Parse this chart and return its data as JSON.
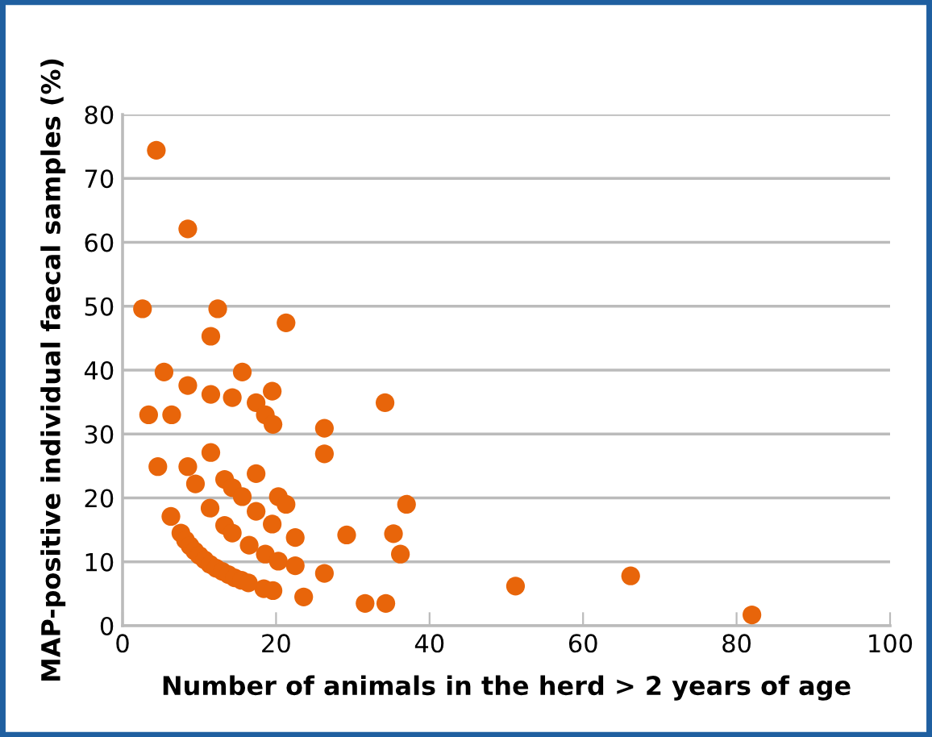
{
  "chart_data": {
    "type": "scatter",
    "xlabel": "Number of animals in the herd > 2 years of age",
    "ylabel": "MAP-positive individual faecal samples (%)",
    "xlim": [
      0,
      100
    ],
    "xticks": [
      0,
      20,
      40,
      60,
      80,
      100
    ],
    "ylim": [
      0,
      80
    ],
    "yticks": [
      0,
      10,
      20,
      30,
      40,
      50,
      60,
      70,
      80
    ],
    "grid": "y",
    "marker": "circle",
    "legend": false,
    "series": [
      {
        "color": "#e8650a",
        "x": [
          4.4,
          8.5,
          2.6,
          12.4,
          11.5,
          21.3,
          5.4,
          15.6,
          8.5,
          11.5,
          14.3,
          17.4,
          19.5,
          34.2,
          18.6,
          19.6,
          3.4,
          6.4,
          26.3,
          26.3,
          11.5,
          4.6,
          8.5,
          17.4,
          9.5,
          13.3,
          14.3,
          15.6,
          20.3,
          21.3,
          37.0,
          6.3,
          11.4,
          17.4,
          13.3,
          14.3,
          19.5,
          22.5,
          29.2,
          35.3,
          36.2,
          16.5,
          18.6,
          20.3,
          22.5,
          26.3,
          18.4,
          19.6,
          23.6,
          31.6,
          34.3,
          51.2,
          66.2,
          82.0,
          7.6,
          8.2,
          8.8,
          9.4,
          10.0,
          10.7,
          11.4,
          12.2,
          13.0,
          13.8,
          14.6,
          15.5,
          16.4
        ],
        "values": [
          74.4,
          62.1,
          49.6,
          49.6,
          45.3,
          47.4,
          39.7,
          39.7,
          37.6,
          36.2,
          35.7,
          34.9,
          36.7,
          34.9,
          33.0,
          31.5,
          33.0,
          33.0,
          30.9,
          26.9,
          27.1,
          24.9,
          24.9,
          23.8,
          22.2,
          22.9,
          21.6,
          20.2,
          20.2,
          19.0,
          19.0,
          17.1,
          18.4,
          17.9,
          15.7,
          14.5,
          15.9,
          13.8,
          14.2,
          14.4,
          11.2,
          12.6,
          11.2,
          10.1,
          9.4,
          8.2,
          5.8,
          5.5,
          4.5,
          3.5,
          3.5,
          6.2,
          7.8,
          1.7,
          14.5,
          13.4,
          12.5,
          11.7,
          11.0,
          10.3,
          9.6,
          9.0,
          8.5,
          8.0,
          7.5,
          7.1,
          6.7
        ]
      }
    ]
  }
}
